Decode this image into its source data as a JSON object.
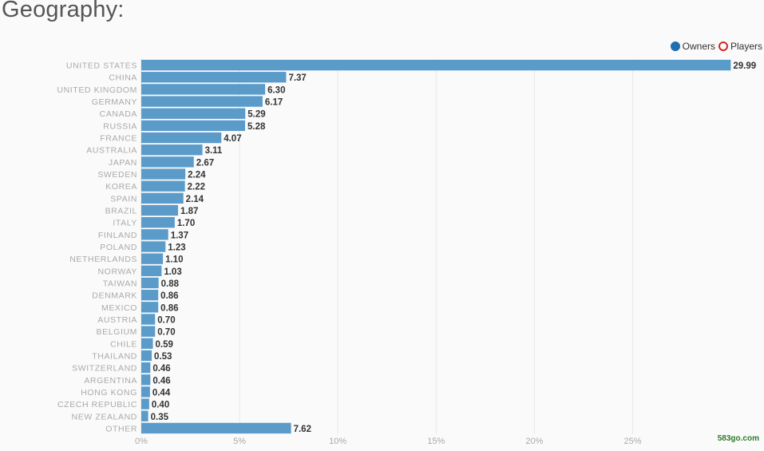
{
  "header": {
    "title": "Geography:"
  },
  "legend": [
    {
      "label": "Owners",
      "color": "#1f6eb0",
      "style": "filled"
    },
    {
      "label": "Players",
      "color": "#d62728",
      "style": "ring"
    }
  ],
  "colors": {
    "bar": "#5b9bca",
    "grid": "#e8e8e8",
    "category_text": "#aaaaaa",
    "value_text": "#333333",
    "tick_text": "#aaaaaa"
  },
  "chart_data": {
    "type": "bar",
    "orientation": "horizontal",
    "title": "Geography:",
    "xlim": [
      0,
      30
    ],
    "x_ticks": [
      "0%",
      "5%",
      "10%",
      "15%",
      "20%",
      "25%"
    ],
    "x_tick_values": [
      0,
      5,
      10,
      15,
      20,
      25
    ],
    "grid": true,
    "legend_position": "top-right",
    "categories": [
      "UNITED STATES",
      "CHINA",
      "UNITED KINGDOM",
      "GERMANY",
      "CANADA",
      "RUSSIA",
      "FRANCE",
      "AUSTRALIA",
      "JAPAN",
      "SWEDEN",
      "KOREA",
      "SPAIN",
      "BRAZIL",
      "ITALY",
      "FINLAND",
      "POLAND",
      "NETHERLANDS",
      "NORWAY",
      "TAIWAN",
      "DENMARK",
      "MEXICO",
      "AUSTRIA",
      "BELGIUM",
      "CHILE",
      "THAILAND",
      "SWITZERLAND",
      "ARGENTINA",
      "HONG KONG",
      "CZECH REPUBLIC",
      "NEW ZEALAND",
      "OTHER"
    ],
    "series": [
      {
        "name": "Owners",
        "values": [
          29.99,
          7.37,
          6.3,
          6.17,
          5.29,
          5.28,
          4.07,
          3.11,
          2.67,
          2.24,
          2.22,
          2.14,
          1.87,
          1.7,
          1.37,
          1.23,
          1.1,
          1.03,
          0.88,
          0.86,
          0.86,
          0.7,
          0.7,
          0.59,
          0.53,
          0.46,
          0.46,
          0.44,
          0.4,
          0.35,
          7.62
        ]
      }
    ],
    "value_labels": [
      "29.99",
      "7.37",
      "6.30",
      "6.17",
      "5.29",
      "5.28",
      "4.07",
      "3.11",
      "2.67",
      "2.24",
      "2.22",
      "2.14",
      "1.87",
      "1.70",
      "1.37",
      "1.23",
      "1.10",
      "1.03",
      "0.88",
      "0.86",
      "0.86",
      "0.70",
      "0.70",
      "0.59",
      "0.53",
      "0.46",
      "0.46",
      "0.44",
      "0.40",
      "0.35",
      "7.62"
    ]
  },
  "watermark": {
    "text": "583go.com"
  }
}
